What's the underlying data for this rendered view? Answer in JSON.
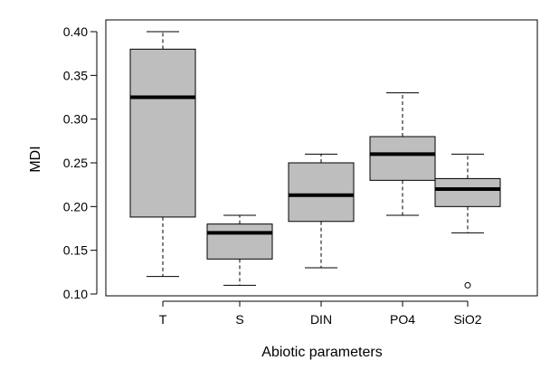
{
  "chart_data": {
    "type": "boxplot",
    "title": "",
    "xlabel": "Abiotic parameters",
    "ylabel": "MDI",
    "ylim": [
      0.1,
      0.4
    ],
    "yticks": [
      0.1,
      0.15,
      0.2,
      0.25,
      0.3,
      0.35,
      0.4
    ],
    "ytick_labels": [
      "0.10",
      "0.15",
      "0.20",
      "0.25",
      "0.30",
      "0.35",
      "0.40"
    ],
    "categories": [
      "T",
      "S",
      "DIN",
      "PO4",
      "SiO2"
    ],
    "boxes": [
      {
        "name": "T",
        "whisker_low": 0.12,
        "q1": 0.188,
        "median": 0.325,
        "q3": 0.38,
        "whisker_high": 0.4,
        "outliers": []
      },
      {
        "name": "S",
        "whisker_low": 0.11,
        "q1": 0.14,
        "median": 0.17,
        "q3": 0.18,
        "whisker_high": 0.19,
        "outliers": []
      },
      {
        "name": "DIN",
        "whisker_low": 0.13,
        "q1": 0.183,
        "median": 0.213,
        "q3": 0.25,
        "whisker_high": 0.26,
        "outliers": []
      },
      {
        "name": "PO4",
        "whisker_low": 0.19,
        "q1": 0.23,
        "median": 0.26,
        "q3": 0.28,
        "whisker_high": 0.33,
        "outliers": []
      },
      {
        "name": "SiO2",
        "whisker_low": 0.17,
        "q1": 0.2,
        "median": 0.22,
        "q3": 0.232,
        "whisker_high": 0.26,
        "outliers": [
          0.11
        ]
      }
    ],
    "box_fill": "#bebebe",
    "median_color": "#000000",
    "grid": false,
    "legend": "none"
  }
}
